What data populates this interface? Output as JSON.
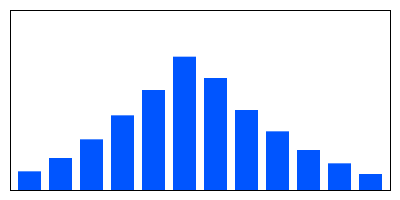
{
  "chart_data": {
    "type": "bar",
    "categories": [
      null,
      null,
      null,
      null,
      null,
      null,
      null,
      null,
      null,
      null,
      null,
      null
    ],
    "values": [
      0.14,
      0.24,
      0.38,
      0.56,
      0.75,
      1.0,
      0.84,
      0.6,
      0.44,
      0.3,
      0.2,
      0.12
    ],
    "color": "#0055ff",
    "ylim": [
      0,
      1.35
    ],
    "tick_labels": false
  }
}
